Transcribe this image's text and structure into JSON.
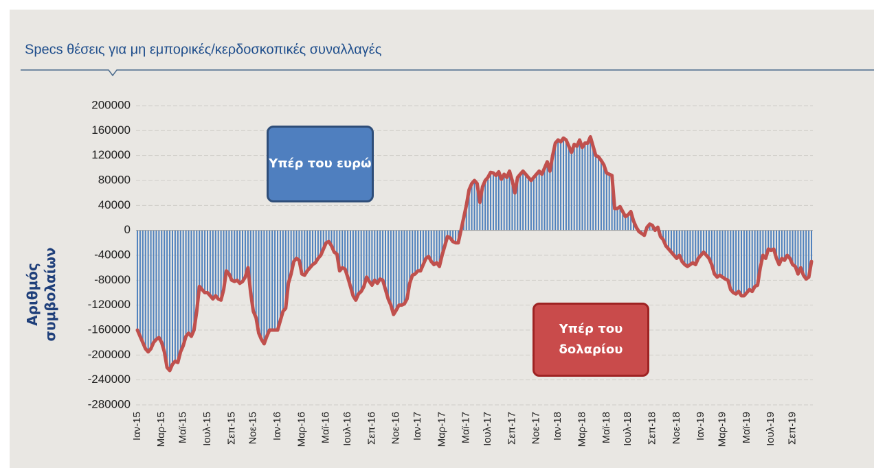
{
  "chart_data": {
    "type": "bar_line",
    "title": "Specs θέσεις για μη εμπορικές/κερδοσκοπικές συναλλαγές",
    "y_label": "Αριθμός συμβολαίων",
    "annotations": [
      "Υπέρ του ευρώ",
      "Υπέρ του δολαρίου"
    ],
    "color": "#4f81bd",
    "line_color": "#c0504d",
    "ylim": [
      -280000,
      200000
    ],
    "yticks": [
      -280000,
      -240000,
      -200000,
      -160000,
      -120000,
      -80000,
      -40000,
      0,
      40000,
      80000,
      120000,
      160000,
      200000
    ],
    "grid": true,
    "categories": [
      "Ιαν-15",
      null,
      null,
      null,
      null,
      null,
      null,
      null,
      null,
      "Μαρ-15",
      null,
      null,
      null,
      null,
      null,
      null,
      null,
      "Μαϊ-15",
      null,
      null,
      null,
      null,
      null,
      null,
      null,
      null,
      "Ιουλ-15",
      null,
      null,
      null,
      null,
      null,
      null,
      null,
      null,
      "Σεπ-15",
      null,
      null,
      null,
      null,
      null,
      null,
      null,
      "Νοε-15",
      null,
      null,
      null,
      null,
      null,
      null,
      null,
      null,
      "Ιαν-16",
      null,
      null,
      null,
      null,
      null,
      null,
      null,
      null,
      "Μαρ-16",
      null,
      null,
      null,
      null,
      null,
      null,
      null,
      null,
      "Μαϊ-16",
      null,
      null,
      null,
      null,
      null,
      null,
      null,
      "Ιουλ-16",
      null,
      null,
      null,
      null,
      null,
      null,
      null,
      null,
      "Σεπ-16",
      null,
      null,
      null,
      null,
      null,
      null,
      null,
      null,
      "Νοε-16",
      null,
      null,
      null,
      null,
      null,
      null,
      null,
      "Ιαν-17",
      null,
      null,
      null,
      null,
      null,
      null,
      null,
      null,
      "Μαρ-17",
      null,
      null,
      null,
      null,
      null,
      null,
      null,
      null,
      "Μαϊ-17",
      null,
      null,
      null,
      null,
      null,
      null,
      null,
      "Ιουλ-17",
      null,
      null,
      null,
      null,
      null,
      null,
      null,
      null,
      "Σεπ-17",
      null,
      null,
      null,
      null,
      null,
      null,
      null,
      null,
      "Νοε-17",
      null,
      null,
      null,
      null,
      null,
      null,
      null,
      "Ιαν-18",
      null,
      null,
      null,
      null,
      null,
      null,
      null,
      null,
      "Μαρ-18",
      null,
      null,
      null,
      null,
      null,
      null,
      null,
      null,
      "Μαϊ-18",
      null,
      null,
      null,
      null,
      null,
      null,
      null,
      "Ιουλ-18",
      null,
      null,
      null,
      null,
      null,
      null,
      null,
      null,
      "Σεπ-18",
      null,
      null,
      null,
      null,
      null,
      null,
      null,
      null,
      "Νοε-18",
      null,
      null,
      null,
      null,
      null,
      null,
      null,
      null,
      "Ιαν-19",
      null,
      null,
      null,
      null,
      null,
      null,
      null,
      "Μαρ-19",
      null,
      null,
      null,
      null,
      null,
      null,
      null,
      null,
      "Μαϊ-19",
      null,
      null,
      null,
      null,
      null,
      null,
      null,
      null,
      "Ιουλ-19",
      null,
      null,
      null,
      null,
      null,
      null,
      null,
      "Σεπ-19",
      null,
      null,
      null,
      null,
      null,
      null,
      null
    ],
    "values": [
      -160000,
      -170000,
      -180000,
      -190000,
      -195000,
      -190000,
      -180000,
      -175000,
      -172000,
      -180000,
      -195000,
      -220000,
      -225000,
      -215000,
      -210000,
      -212000,
      -195000,
      -185000,
      -170000,
      -165000,
      -170000,
      -160000,
      -130000,
      -90000,
      -95000,
      -100000,
      -100000,
      -105000,
      -110000,
      -105000,
      -110000,
      -112000,
      -95000,
      -65000,
      -70000,
      -80000,
      -82000,
      -80000,
      -85000,
      -82000,
      -75000,
      -60000,
      -100000,
      -130000,
      -140000,
      -165000,
      -175000,
      -182000,
      -170000,
      -160000,
      -160000,
      -160000,
      -160000,
      -145000,
      -130000,
      -125000,
      -85000,
      -70000,
      -50000,
      -45000,
      -48000,
      -70000,
      -72000,
      -65000,
      -60000,
      -55000,
      -52000,
      -45000,
      -40000,
      -30000,
      -20000,
      -18000,
      -25000,
      -35000,
      -38000,
      -65000,
      -60000,
      -62000,
      -75000,
      -90000,
      -105000,
      -112000,
      -102000,
      -98000,
      -90000,
      -75000,
      -82000,
      -88000,
      -80000,
      -85000,
      -78000,
      -80000,
      -95000,
      -110000,
      -120000,
      -135000,
      -128000,
      -120000,
      -120000,
      -118000,
      -110000,
      -85000,
      -72000,
      -70000,
      -65000,
      -65000,
      -55000,
      -45000,
      -42000,
      -50000,
      -55000,
      -52000,
      -58000,
      -40000,
      -25000,
      -10000,
      -12000,
      -18000,
      -20000,
      -20000,
      0,
      20000,
      40000,
      65000,
      75000,
      80000,
      75000,
      45000,
      70000,
      80000,
      85000,
      93000,
      92000,
      88000,
      94000,
      82000,
      90000,
      85000,
      95000,
      80000,
      60000,
      85000,
      90000,
      95000,
      90000,
      85000,
      80000,
      85000,
      90000,
      95000,
      90000,
      100000,
      110000,
      95000,
      120000,
      140000,
      145000,
      142000,
      148000,
      145000,
      135000,
      125000,
      138000,
      135000,
      145000,
      133000,
      140000,
      140000,
      150000,
      135000,
      120000,
      118000,
      112000,
      105000,
      92000,
      90000,
      88000,
      35000,
      35000,
      38000,
      30000,
      22000,
      25000,
      30000,
      15000,
      5000,
      -2000,
      -5000,
      -8000,
      5000,
      10000,
      8000,
      0,
      5000,
      -10000,
      -15000,
      -25000,
      -30000,
      -35000,
      -40000,
      -45000,
      -40000,
      -50000,
      -55000,
      -58000,
      -55000,
      -52000,
      -55000,
      -45000,
      -40000,
      -35000,
      -40000,
      -45000,
      -55000,
      -70000,
      -75000,
      -72000,
      -75000,
      -78000,
      -80000,
      -95000,
      -100000,
      -102000,
      -98000,
      -105000,
      -105000,
      -100000,
      -95000,
      -98000,
      -90000,
      -88000,
      -60000,
      -40000,
      -45000,
      -30000,
      -32000,
      -30000,
      -45000,
      -55000,
      -45000,
      -48000,
      -40000,
      -45000,
      -55000,
      -58000,
      -70000,
      -60000,
      -72000,
      -78000,
      -75000,
      -50000
    ]
  }
}
